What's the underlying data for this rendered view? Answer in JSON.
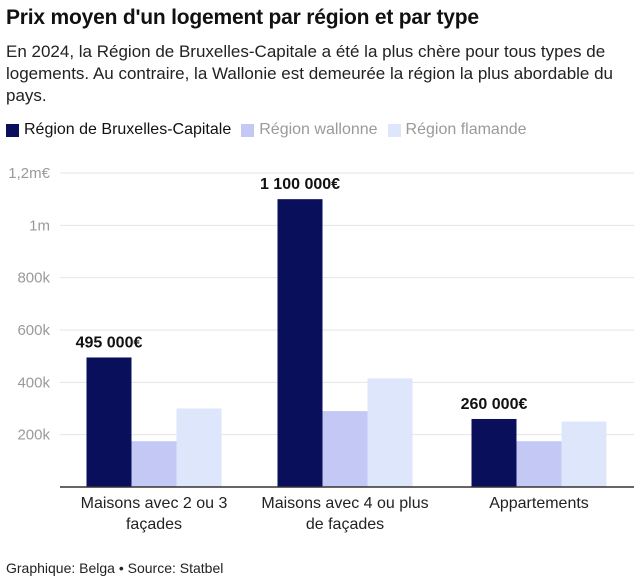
{
  "title": "Prix moyen d'un logement par région et par type",
  "subtitle": "En 2024, la Région de Bruxelles-Capitale a été la plus chère pour tous types de logements. Au contraire, la Wallonie est demeurée la région la plus abordable du pays.",
  "footer": "Graphique: Belga • Source: Statbel",
  "colors": {
    "bruxelles": "#0a0f5c",
    "wallonne": "#c4c8f5",
    "flamande": "#dde6fb",
    "grid": "#e4e4e4",
    "axis": "#333333",
    "tick_text": "#9a9a9a"
  },
  "legend": [
    {
      "name": "Région de Bruxelles-Capitale",
      "color": "#0a0f5c",
      "state": "active"
    },
    {
      "name": "Région wallonne",
      "color": "#c4c8f5",
      "state": "inactive"
    },
    {
      "name": "Région flamande",
      "color": "#dde6fb",
      "state": "inactive"
    }
  ],
  "chart_data": {
    "type": "bar",
    "categories": [
      [
        "Maisons avec 2 ou 3",
        "façades"
      ],
      [
        "Maisons avec 4 ou plus",
        "de façades"
      ],
      [
        "Appartements"
      ]
    ],
    "series": [
      {
        "name": "Région de Bruxelles-Capitale",
        "values": [
          495000,
          1100000,
          260000
        ]
      },
      {
        "name": "Région wallonne",
        "values": [
          175000,
          290000,
          175000
        ]
      },
      {
        "name": "Région flamande",
        "values": [
          300000,
          415000,
          250000
        ]
      }
    ],
    "data_labels": [
      "495 000€",
      "1 100 000€",
      "260 000€"
    ],
    "yticks": [
      {
        "value": 200000,
        "label": "200k"
      },
      {
        "value": 400000,
        "label": "400k"
      },
      {
        "value": 600000,
        "label": "600k"
      },
      {
        "value": 800000,
        "label": "800k"
      },
      {
        "value": 1000000,
        "label": "1m"
      },
      {
        "value": 1200000,
        "label": "1,2m€"
      }
    ],
    "ylim": [
      0,
      1200000
    ],
    "grid": true,
    "legend_position": "top-left"
  }
}
